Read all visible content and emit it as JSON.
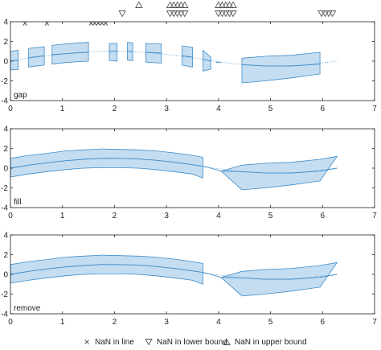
{
  "chart_data": [
    {
      "type": "line",
      "panel_label": "gap",
      "xlim": [
        0,
        7
      ],
      "ylim": [
        -4,
        4
      ],
      "xticks": [
        0,
        1,
        2,
        3,
        4,
        5,
        6,
        7
      ],
      "yticks": [
        -4,
        -2,
        0,
        2,
        4
      ],
      "grid": false,
      "center_line": [
        [
          0,
          0.0
        ],
        [
          0.35,
          0.3
        ],
        [
          0.7,
          0.55
        ],
        [
          1.05,
          0.75
        ],
        [
          1.4,
          0.9
        ],
        [
          1.75,
          1.0
        ],
        [
          2.1,
          1.0
        ],
        [
          2.45,
          0.95
        ],
        [
          2.8,
          0.8
        ],
        [
          3.15,
          0.6
        ],
        [
          3.5,
          0.35
        ],
        [
          3.85,
          0.05
        ],
        [
          4.2,
          -0.2
        ],
        [
          4.55,
          -0.4
        ],
        [
          4.9,
          -0.5
        ],
        [
          5.25,
          -0.5
        ],
        [
          5.6,
          -0.4
        ],
        [
          5.95,
          -0.2
        ],
        [
          6.28,
          0.0
        ]
      ],
      "bands": [
        {
          "upper": [
            [
              0,
              1.0
            ],
            [
              0.15,
              1.1
            ]
          ],
          "lower": [
            [
              0,
              -0.9
            ],
            [
              0.15,
              -0.85
            ]
          ]
        },
        {
          "upper": [
            [
              0.35,
              1.3
            ],
            [
              0.65,
              1.45
            ]
          ],
          "lower": [
            [
              0.35,
              -0.6
            ],
            [
              0.65,
              -0.4
            ]
          ]
        },
        {
          "upper": [
            [
              0.8,
              1.6
            ],
            [
              1.05,
              1.75
            ],
            [
              1.3,
              1.85
            ],
            [
              1.5,
              1.9
            ]
          ],
          "lower": [
            [
              0.8,
              -0.3
            ],
            [
              1.05,
              -0.15
            ],
            [
              1.3,
              -0.05
            ],
            [
              1.5,
              0.0
            ]
          ]
        },
        {
          "upper": [
            [
              1.9,
              1.8
            ],
            [
              2.05,
              1.8
            ]
          ],
          "lower": [
            [
              1.9,
              0.05
            ],
            [
              2.05,
              0.0
            ]
          ]
        },
        {
          "upper": [
            [
              2.25,
              1.9
            ],
            [
              2.35,
              1.85
            ]
          ],
          "lower": [
            [
              2.25,
              0.1
            ],
            [
              2.35,
              0.05
            ]
          ]
        },
        {
          "upper": [
            [
              2.6,
              1.8
            ],
            [
              2.9,
              1.75
            ]
          ],
          "lower": [
            [
              2.6,
              -0.1
            ],
            [
              2.9,
              -0.2
            ]
          ]
        },
        {
          "upper": [
            [
              3.3,
              1.55
            ],
            [
              3.5,
              1.4
            ]
          ],
          "lower": [
            [
              3.3,
              -0.4
            ],
            [
              3.5,
              -0.6
            ]
          ]
        },
        {
          "upper": [
            [
              3.7,
              1.1
            ],
            [
              3.85,
              0.4
            ]
          ],
          "lower": [
            [
              3.7,
              -1.0
            ],
            [
              3.85,
              -0.8
            ]
          ]
        },
        {
          "upper": [
            [
              4.45,
              0.3
            ],
            [
              4.9,
              0.5
            ],
            [
              5.4,
              0.6
            ],
            [
              5.95,
              0.9
            ]
          ],
          "lower": [
            [
              4.45,
              -2.2
            ],
            [
              4.9,
              -2.0
            ],
            [
              5.4,
              -1.7
            ],
            [
              5.95,
              -1.3
            ]
          ]
        }
      ],
      "segments": [
        [
          [
            0,
            0.0
          ],
          [
            0.15,
            0.1
          ]
        ],
        [
          [
            0.35,
            0.35
          ],
          [
            0.65,
            0.55
          ]
        ],
        [
          [
            0.8,
            0.65
          ],
          [
            1.05,
            0.75
          ],
          [
            1.3,
            0.85
          ],
          [
            1.5,
            0.9
          ]
        ],
        [
          [
            1.9,
            1.0
          ],
          [
            2.05,
            1.0
          ]
        ],
        [
          [
            2.25,
            1.0
          ],
          [
            2.35,
            0.98
          ]
        ],
        [
          [
            2.6,
            0.9
          ],
          [
            2.9,
            0.82
          ]
        ],
        [
          [
            3.3,
            0.55
          ],
          [
            3.5,
            0.4
          ]
        ],
        [
          [
            3.7,
            0.2
          ],
          [
            3.85,
            0.0
          ]
        ],
        [
          [
            3.95,
            -0.1
          ],
          [
            4.05,
            -0.15
          ]
        ],
        [
          [
            4.45,
            -0.35
          ],
          [
            4.9,
            -0.5
          ],
          [
            5.4,
            -0.5
          ],
          [
            5.95,
            -0.3
          ]
        ]
      ],
      "nan_in_line_x": [
        0.28,
        0.7,
        1.55,
        1.62,
        1.69,
        1.76,
        1.83
      ],
      "nan_in_lower_bound_x": [
        2.15,
        3.07,
        3.14,
        3.21,
        3.28,
        3.35,
        4.0,
        4.07,
        4.14,
        4.21,
        4.28,
        5.98,
        6.05,
        6.12,
        6.19
      ],
      "nan_in_upper_bound_x": [
        2.47,
        3.07,
        3.14,
        3.21,
        3.28,
        3.35,
        4.0,
        4.07,
        4.14,
        4.21,
        4.28
      ]
    },
    {
      "type": "line",
      "panel_label": "fill",
      "xlim": [
        0,
        7
      ],
      "ylim": [
        -4,
        4
      ],
      "xticks": [
        0,
        1,
        2,
        3,
        4,
        5,
        6,
        7
      ],
      "yticks": [
        -4,
        -2,
        0,
        2,
        4
      ],
      "grid": false,
      "center_line": [
        [
          0,
          0.0
        ],
        [
          0.35,
          0.3
        ],
        [
          0.7,
          0.55
        ],
        [
          1.05,
          0.75
        ],
        [
          1.4,
          0.9
        ],
        [
          1.75,
          1.0
        ],
        [
          2.1,
          1.0
        ],
        [
          2.45,
          0.95
        ],
        [
          2.8,
          0.8
        ],
        [
          3.15,
          0.6
        ],
        [
          3.5,
          0.35
        ],
        [
          3.85,
          0.05
        ],
        [
          4.2,
          -0.2
        ],
        [
          4.55,
          -0.4
        ],
        [
          4.9,
          -0.5
        ],
        [
          5.25,
          -0.5
        ],
        [
          5.6,
          -0.4
        ],
        [
          5.95,
          -0.2
        ],
        [
          6.28,
          0.0
        ]
      ],
      "bands": [
        {
          "upper": [
            [
              0,
              1.0
            ],
            [
              0.35,
              1.3
            ],
            [
              0.7,
              1.5
            ],
            [
              1.05,
              1.75
            ],
            [
              1.4,
              1.85
            ],
            [
              1.75,
              1.95
            ],
            [
              2.1,
              1.9
            ],
            [
              2.45,
              1.85
            ],
            [
              2.8,
              1.75
            ],
            [
              3.15,
              1.55
            ],
            [
              3.5,
              1.3
            ],
            [
              3.7,
              1.1
            ]
          ],
          "lower": [
            [
              0,
              -0.9
            ],
            [
              0.35,
              -0.6
            ],
            [
              0.7,
              -0.35
            ],
            [
              1.05,
              -0.15
            ],
            [
              1.4,
              0.0
            ],
            [
              1.75,
              0.05
            ],
            [
              2.1,
              0.05
            ],
            [
              2.45,
              0.0
            ],
            [
              2.8,
              -0.15
            ],
            [
              3.15,
              -0.35
            ],
            [
              3.5,
              -0.6
            ],
            [
              3.7,
              -1.0
            ]
          ]
        },
        {
          "upper": [
            [
              4.05,
              -0.3
            ],
            [
              4.45,
              0.3
            ],
            [
              4.9,
              0.5
            ],
            [
              5.4,
              0.6
            ],
            [
              5.95,
              0.9
            ],
            [
              6.28,
              1.2
            ]
          ],
          "lower": [
            [
              4.05,
              -0.3
            ],
            [
              4.45,
              -2.2
            ],
            [
              4.9,
              -2.0
            ],
            [
              5.4,
              -1.7
            ],
            [
              5.95,
              -1.3
            ],
            [
              6.28,
              1.2
            ]
          ]
        }
      ],
      "segments": [
        [
          [
            0,
            0.0
          ],
          [
            0.35,
            0.3
          ],
          [
            0.7,
            0.55
          ],
          [
            1.05,
            0.75
          ],
          [
            1.4,
            0.9
          ],
          [
            1.75,
            1.0
          ],
          [
            2.1,
            1.0
          ],
          [
            2.45,
            0.95
          ],
          [
            2.8,
            0.8
          ],
          [
            3.15,
            0.6
          ],
          [
            3.5,
            0.35
          ],
          [
            3.7,
            0.2
          ],
          [
            3.85,
            0.0
          ],
          [
            4.05,
            -0.3
          ],
          [
            4.45,
            -0.35
          ],
          [
            4.9,
            -0.5
          ],
          [
            5.4,
            -0.5
          ],
          [
            5.95,
            -0.3
          ],
          [
            6.28,
            0.0
          ]
        ]
      ]
    },
    {
      "type": "line",
      "panel_label": "remove",
      "xlim": [
        0,
        7
      ],
      "ylim": [
        -4,
        4
      ],
      "xticks": [
        0,
        1,
        2,
        3,
        4,
        5,
        6,
        7
      ],
      "yticks": [
        -4,
        -2,
        0,
        2,
        4
      ],
      "grid": false,
      "center_line": [
        [
          0,
          0.0
        ],
        [
          0.35,
          0.3
        ],
        [
          0.7,
          0.55
        ],
        [
          1.05,
          0.75
        ],
        [
          1.4,
          0.9
        ],
        [
          1.75,
          1.0
        ],
        [
          2.1,
          1.0
        ],
        [
          2.45,
          0.95
        ],
        [
          2.8,
          0.8
        ],
        [
          3.15,
          0.6
        ],
        [
          3.5,
          0.35
        ],
        [
          3.85,
          0.05
        ],
        [
          4.2,
          -0.2
        ],
        [
          4.55,
          -0.4
        ],
        [
          4.9,
          -0.5
        ],
        [
          5.25,
          -0.5
        ],
        [
          5.6,
          -0.4
        ],
        [
          5.95,
          -0.2
        ],
        [
          6.28,
          0.0
        ]
      ],
      "bands": [
        {
          "upper": [
            [
              0,
              1.0
            ],
            [
              0.35,
              1.3
            ],
            [
              0.7,
              1.5
            ],
            [
              1.05,
              1.75
            ],
            [
              1.4,
              1.85
            ],
            [
              1.75,
              1.95
            ],
            [
              2.1,
              1.9
            ],
            [
              2.45,
              1.85
            ],
            [
              2.8,
              1.75
            ],
            [
              3.15,
              1.55
            ],
            [
              3.5,
              1.3
            ],
            [
              3.7,
              1.1
            ]
          ],
          "lower": [
            [
              0,
              -0.9
            ],
            [
              0.35,
              -0.6
            ],
            [
              0.7,
              -0.35
            ],
            [
              1.05,
              -0.15
            ],
            [
              1.4,
              0.0
            ],
            [
              1.75,
              0.05
            ],
            [
              2.1,
              0.05
            ],
            [
              2.45,
              0.0
            ],
            [
              2.8,
              -0.15
            ],
            [
              3.15,
              -0.35
            ],
            [
              3.5,
              -0.6
            ],
            [
              3.7,
              -1.0
            ]
          ]
        },
        {
          "upper": [
            [
              4.05,
              -0.3
            ],
            [
              4.45,
              0.3
            ],
            [
              4.9,
              0.5
            ],
            [
              5.4,
              0.6
            ],
            [
              5.95,
              0.9
            ],
            [
              6.28,
              1.2
            ]
          ],
          "lower": [
            [
              4.05,
              -0.3
            ],
            [
              4.45,
              -2.2
            ],
            [
              4.9,
              -2.0
            ],
            [
              5.4,
              -1.7
            ],
            [
              5.95,
              -1.3
            ],
            [
              6.28,
              1.2
            ]
          ]
        }
      ],
      "segments": [
        [
          [
            0,
            0.0
          ],
          [
            0.35,
            0.3
          ],
          [
            0.7,
            0.55
          ],
          [
            1.05,
            0.75
          ],
          [
            1.4,
            0.9
          ],
          [
            1.75,
            1.0
          ],
          [
            2.1,
            1.0
          ],
          [
            2.45,
            0.95
          ],
          [
            2.8,
            0.8
          ],
          [
            3.15,
            0.6
          ],
          [
            3.5,
            0.35
          ],
          [
            3.7,
            0.2
          ],
          [
            3.85,
            0.0
          ],
          [
            4.05,
            -0.3
          ],
          [
            4.45,
            -0.35
          ],
          [
            4.9,
            -0.5
          ],
          [
            5.4,
            -0.5
          ],
          [
            5.95,
            -0.3
          ],
          [
            6.28,
            0.0
          ]
        ]
      ]
    }
  ],
  "legend": {
    "placement": "bottom",
    "items": [
      {
        "marker": "cross-icon",
        "label": "NaN in line"
      },
      {
        "marker": "triangle-down-icon",
        "label": "NaN in lower bound"
      },
      {
        "marker": "triangle-up-icon",
        "label": "NaN in upper bound"
      }
    ]
  },
  "colors": {
    "band_fill": "#c5ddf1",
    "band_edge": "#3d8cc8",
    "line": "#3d8cc8",
    "center_dotted": "#3d8cc8",
    "axis": "#222222",
    "marker": "#555555"
  }
}
